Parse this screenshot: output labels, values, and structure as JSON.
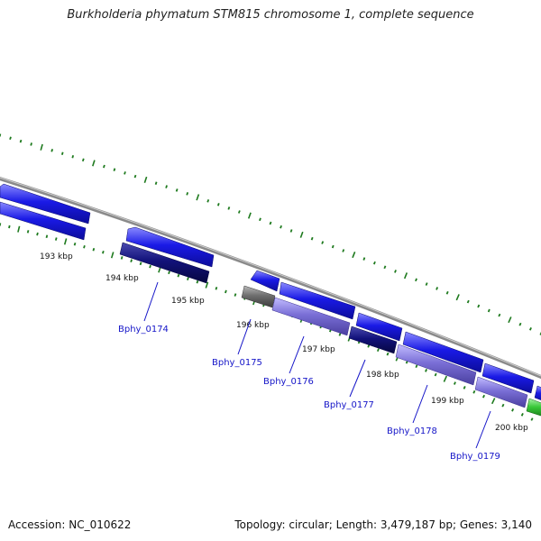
{
  "header": {
    "title": "Burkholderia phymatum STM815 chromosome 1, complete sequence"
  },
  "footer": {
    "accession": "Accession: NC_010622",
    "summary": "Topology: circular; Length: 3,479,187 bp; Genes: 3,140"
  },
  "colors": {
    "backbone": "#8a8a8a",
    "tick": "#1e7a1e",
    "gene_blue": "#1a1ae6",
    "gene_navy": "#12127a",
    "gene_lavender": "#7a6fd6",
    "gene_grey": "#6e6e6e",
    "gene_green": "#38c838",
    "label": "#1515c8"
  },
  "map": {
    "kbp_labels": [
      "193 kbp",
      "194 kbp",
      "195 kbp",
      "196 kbp",
      "197 kbp",
      "198 kbp",
      "199 kbp",
      "200 kbp"
    ],
    "gene_labels": [
      "Bphy_0174",
      "Bphy_0175",
      "Bphy_0176",
      "Bphy_0177",
      "Bphy_0178",
      "Bphy_0179"
    ]
  }
}
